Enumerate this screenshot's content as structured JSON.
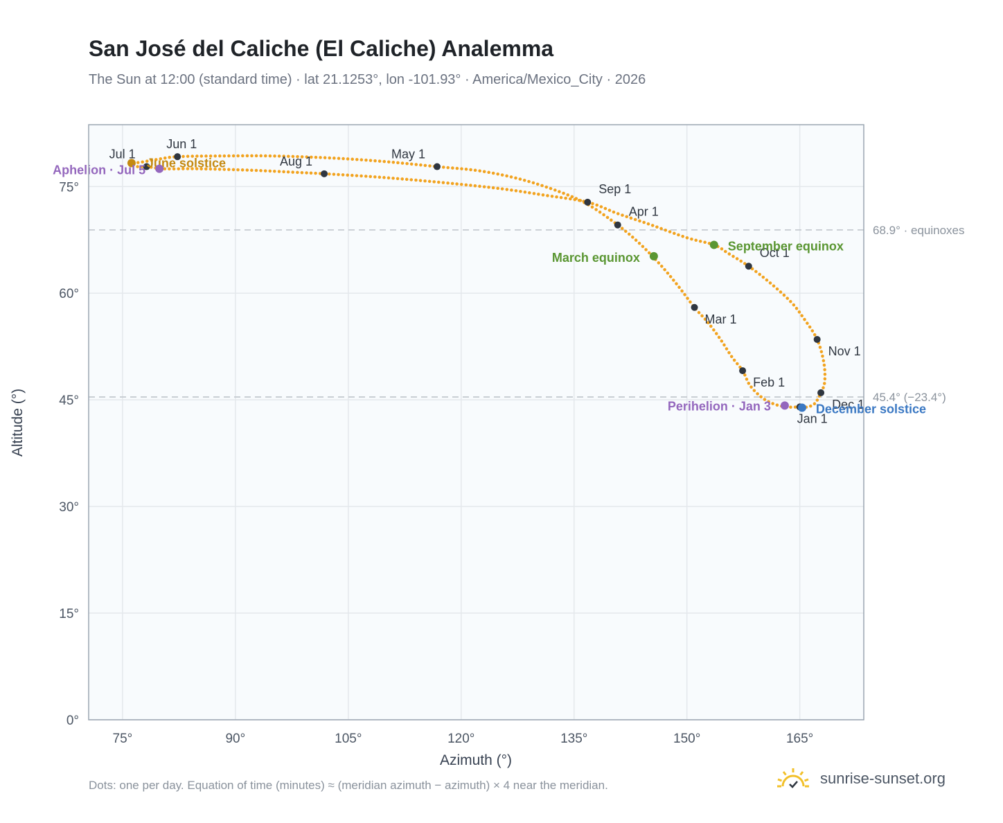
{
  "title": "San José del Caliche (El Caliche) Analemma",
  "subtitle": "The Sun at 12:00 (standard time) · lat 21.1253°, lon -101.93° · America/Mexico_City · 2026",
  "footnote": "Dots: one per day. Equation of time (minutes) ≈ (meridian azimuth − azimuth) × 4 near the meridian.",
  "brand": {
    "text": "sunrise-sunset.org",
    "logo_icon": "sun-logo-icon",
    "logo_color": "#f2c029"
  },
  "colors": {
    "curve": "#f2a31f",
    "month_marker": "#2f3640",
    "equinox": "#5a9632",
    "aphelion": "#9467bd",
    "perihelion": "#9467bd",
    "june_solstice": "#c48a12",
    "december_solstice": "#3a78c3",
    "plot_bg": "#f8fbfd",
    "grid": "#e4e8ec",
    "reference_line": "#c6cbd1"
  },
  "chart_data": {
    "type": "scatter",
    "xlabel": "Azimuth (°)",
    "ylabel": "Altitude (°)",
    "xlim": [
      70.5,
      173.5
    ],
    "ylim": [
      0,
      83.7
    ],
    "x_ticks": [
      75,
      90,
      105,
      120,
      135,
      150,
      165
    ],
    "x_tick_labels": [
      "75°",
      "90°",
      "105°",
      "120°",
      "135°",
      "150°",
      "165°"
    ],
    "y_ticks": [
      0,
      15,
      30,
      45,
      60,
      75
    ],
    "y_tick_labels": [
      "0°",
      "15°",
      "30°",
      "45°",
      "60°",
      "75°"
    ],
    "grid": true,
    "reference_lines": [
      {
        "altitude": 68.9,
        "label": "68.9° · equinoxes"
      },
      {
        "altitude": 45.4,
        "label": "45.4° (−23.4°)"
      }
    ],
    "month_markers": [
      {
        "label": "Jan 1",
        "x": 165.0,
        "y": 44.0
      },
      {
        "label": "Feb 1",
        "x": 157.4,
        "y": 49.1
      },
      {
        "label": "Mar 1",
        "x": 151.0,
        "y": 58.0
      },
      {
        "label": "Apr 1",
        "x": 140.8,
        "y": 69.6
      },
      {
        "label": "May 1",
        "x": 116.8,
        "y": 77.8
      },
      {
        "label": "Jun 1",
        "x": 82.3,
        "y": 79.2
      },
      {
        "label": "Jul 1",
        "x": 78.2,
        "y": 77.8
      },
      {
        "label": "Aug 1",
        "x": 101.8,
        "y": 76.8
      },
      {
        "label": "Sep 1",
        "x": 136.8,
        "y": 72.8
      },
      {
        "label": "Oct 1",
        "x": 158.2,
        "y": 63.8
      },
      {
        "label": "Nov 1",
        "x": 167.3,
        "y": 53.5
      },
      {
        "label": "Dec 1",
        "x": 167.8,
        "y": 46.0
      }
    ],
    "events": [
      {
        "label": "March equinox",
        "x": 145.6,
        "y": 65.2,
        "kind": "equinox"
      },
      {
        "label": "September equinox",
        "x": 153.6,
        "y": 66.8,
        "kind": "equinox"
      },
      {
        "label": "June solstice",
        "x": 76.2,
        "y": 78.3,
        "kind": "june_solstice"
      },
      {
        "label": "December solstice",
        "x": 165.3,
        "y": 43.9,
        "kind": "december_solstice"
      },
      {
        "label": "Aphelion · Jul 5",
        "x": 79.9,
        "y": 77.5,
        "kind": "aphelion"
      },
      {
        "label": "Perihelion · Jan 3",
        "x": 163.0,
        "y": 44.2,
        "kind": "perihelion"
      }
    ],
    "path": [
      [
        165.0,
        44.0
      ],
      [
        163.3,
        44.0
      ],
      [
        161.6,
        44.4
      ],
      [
        160.0,
        45.3
      ],
      [
        158.4,
        47.0
      ],
      [
        157.4,
        49.1
      ],
      [
        156.0,
        51.0
      ],
      [
        154.4,
        53.6
      ],
      [
        152.7,
        56.0
      ],
      [
        151.0,
        58.0
      ],
      [
        148.7,
        61.2
      ],
      [
        146.3,
        64.2
      ],
      [
        143.7,
        67.0
      ],
      [
        140.8,
        69.6
      ],
      [
        136.8,
        72.5
      ],
      [
        133.0,
        74.3
      ],
      [
        128.0,
        76.0
      ],
      [
        122.5,
        77.2
      ],
      [
        116.8,
        77.8
      ],
      [
        110.0,
        78.5
      ],
      [
        103.0,
        79.0
      ],
      [
        95.0,
        79.3
      ],
      [
        88.0,
        79.3
      ],
      [
        82.3,
        79.2
      ],
      [
        79.5,
        78.8
      ],
      [
        77.3,
        78.4
      ],
      [
        76.2,
        78.3
      ],
      [
        77.0,
        77.8
      ],
      [
        78.2,
        77.8
      ],
      [
        80.5,
        77.5
      ],
      [
        85.0,
        77.5
      ],
      [
        92.0,
        77.3
      ],
      [
        98.0,
        77.0
      ],
      [
        101.8,
        76.8
      ],
      [
        108.0,
        76.4
      ],
      [
        114.0,
        75.9
      ],
      [
        121.0,
        75.2
      ],
      [
        126.0,
        74.6
      ],
      [
        131.0,
        73.8
      ],
      [
        136.8,
        72.8
      ],
      [
        140.8,
        71.2
      ],
      [
        145.0,
        69.7
      ],
      [
        150.0,
        67.8
      ],
      [
        153.6,
        66.8
      ],
      [
        155.5,
        65.6
      ],
      [
        158.2,
        63.8
      ],
      [
        161.0,
        61.5
      ],
      [
        163.8,
        58.8
      ],
      [
        165.5,
        56.5
      ],
      [
        167.3,
        53.5
      ],
      [
        168.2,
        50.2
      ],
      [
        168.3,
        47.5
      ],
      [
        167.8,
        46.0
      ],
      [
        167.0,
        44.5
      ],
      [
        166.0,
        44.0
      ],
      [
        165.0,
        44.0
      ]
    ]
  }
}
